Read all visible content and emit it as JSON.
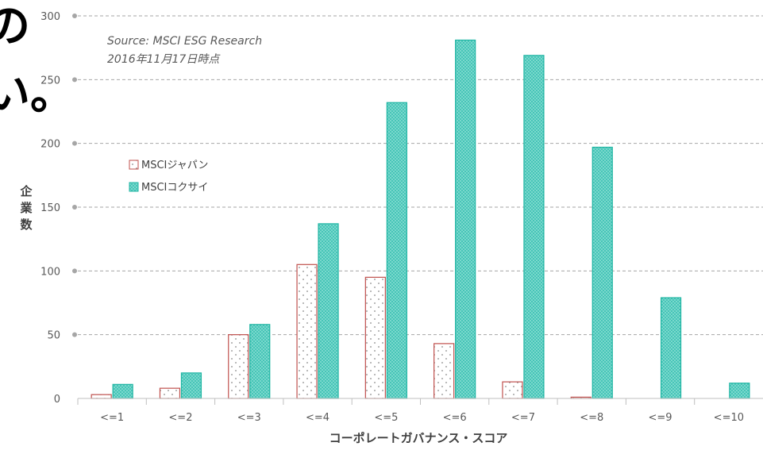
{
  "overlay": {
    "line1": "の",
    "line2": "い。"
  },
  "chart_data": {
    "type": "bar",
    "title": "",
    "source_line1": "Source: MSCI ESG Research",
    "source_line2": "2016年11月17日時点",
    "xlabel": "コーポレートガバナンス・スコア",
    "ylabel": "企業数",
    "ylabel_chars": [
      "企",
      "業",
      "数"
    ],
    "ylim": [
      0,
      300
    ],
    "yticks": [
      0,
      50,
      100,
      150,
      200,
      250,
      300
    ],
    "grid": true,
    "legend_position": "upper-left",
    "categories": [
      "<=1",
      "<=2",
      "<=3",
      "<=4",
      "<=5",
      "<=6",
      "<=7",
      "<=8",
      "<=9",
      "<=10"
    ],
    "series": [
      {
        "name": "MSCIジャパン",
        "color": "#c0504d",
        "fill": "dotted-white",
        "values": [
          3,
          8,
          50,
          105,
          95,
          43,
          13,
          1,
          0,
          0
        ]
      },
      {
        "name": "MSCIコクサイ",
        "color": "#1fb5a3",
        "fill": "teal-crosshatch",
        "values": [
          11,
          20,
          58,
          137,
          232,
          281,
          269,
          197,
          79,
          12
        ]
      }
    ]
  }
}
